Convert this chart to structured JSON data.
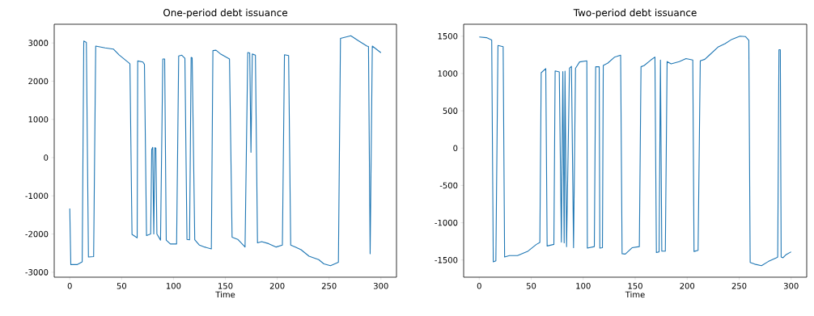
{
  "chart_data": [
    {
      "type": "line",
      "title": "One-period debt issuance",
      "xlabel": "Time",
      "xlim": [
        -15,
        315
      ],
      "ylim": [
        -3130,
        3490
      ],
      "xticks": [
        0,
        50,
        100,
        150,
        200,
        250,
        300
      ],
      "yticks": [
        -3000,
        -2000,
        -1000,
        0,
        1000,
        2000,
        3000
      ],
      "x": [
        0,
        1,
        7,
        12,
        13.5,
        16,
        18,
        23,
        25,
        34,
        42,
        47.5,
        58,
        60,
        65,
        65.5,
        70.5,
        72,
        74,
        78,
        79,
        80,
        81,
        82,
        83,
        84,
        87.5,
        89.7,
        91.5,
        93,
        97,
        103,
        105,
        108,
        111,
        113,
        115.5,
        117,
        118,
        120.5,
        125,
        130,
        136.5,
        138,
        141,
        145,
        154,
        156.5,
        162,
        169,
        171.6,
        173.5,
        174.7,
        176,
        179,
        181,
        185,
        191.6,
        199,
        205,
        207,
        211,
        213,
        217.6,
        223,
        230.7,
        240,
        245,
        251.4,
        259,
        261,
        271,
        278.7,
        286.5,
        288,
        289.6,
        291.7,
        300
      ],
      "series": [
        {
          "color": "#1f77b4",
          "values": [
            -1330,
            -2800,
            -2800,
            -2730,
            3050,
            3015,
            -2600,
            -2590,
            2920,
            2870,
            2840,
            2690,
            2455,
            -2010,
            -2100,
            2530,
            2500,
            2440,
            -2040,
            -2000,
            210,
            270,
            -2000,
            260,
            250,
            -2000,
            -2160,
            2580,
            2580,
            -2160,
            -2260,
            -2260,
            2660,
            2680,
            2600,
            -2140,
            -2150,
            2620,
            2610,
            -2150,
            -2290,
            -2340,
            -2390,
            2800,
            2810,
            2720,
            2580,
            -2085,
            -2140,
            -2340,
            2750,
            2740,
            140,
            2710,
            2680,
            -2230,
            -2200,
            -2250,
            -2340,
            -2290,
            2690,
            2670,
            -2290,
            -2340,
            -2410,
            -2580,
            -2670,
            -2780,
            -2830,
            -2740,
            3120,
            3190,
            3050,
            2920,
            2910,
            -2515,
            2920,
            2745
          ]
        }
      ]
    },
    {
      "type": "line",
      "title": "Two-period debt issuance",
      "xlabel": "Time",
      "xlim": [
        -15,
        315
      ],
      "ylim": [
        -1730,
        1660
      ],
      "xticks": [
        0,
        50,
        100,
        150,
        200,
        250,
        300
      ],
      "yticks": [
        -1500,
        -1000,
        -500,
        0,
        500,
        1000,
        1500
      ],
      "x": [
        0,
        7,
        12,
        13.5,
        16,
        18,
        23,
        24.4,
        29,
        36.8,
        47,
        55,
        58.3,
        59.6,
        64,
        65.3,
        71.8,
        73,
        77,
        79,
        80.4,
        81.7,
        82.5,
        84,
        86.8,
        88.7,
        90.7,
        92.6,
        96.5,
        103.5,
        104,
        110.7,
        112,
        115.4,
        116,
        118.5,
        119.3,
        123.7,
        130,
        136,
        137.4,
        140.5,
        147,
        154,
        155.6,
        158.7,
        165,
        169,
        170.4,
        173,
        174.3,
        175.6,
        179,
        180.7,
        184.6,
        192.4,
        198.9,
        205.4,
        206.6,
        210.5,
        212.6,
        217,
        220.9,
        230,
        236.5,
        243,
        250.8,
        256,
        259.3,
        260.6,
        265,
        271.5,
        278,
        285.8,
        287.1,
        288.3,
        289.6,
        290.4,
        292.2,
        294.9,
        300
      ],
      "series": [
        {
          "color": "#1f77b4",
          "values": [
            1490,
            1480,
            1450,
            -1525,
            -1510,
            1376,
            1360,
            -1460,
            -1440,
            -1440,
            -1380,
            -1290,
            -1265,
            1010,
            1065,
            -1312,
            -1290,
            1035,
            1020,
            -1260,
            1025,
            -1270,
            1030,
            -1320,
            1070,
            1095,
            -1335,
            1070,
            1155,
            1170,
            -1340,
            -1320,
            1090,
            1090,
            -1340,
            -1335,
            1108,
            1140,
            1218,
            1245,
            -1415,
            -1420,
            -1335,
            -1320,
            1090,
            1108,
            1180,
            1220,
            -1400,
            -1390,
            1180,
            -1380,
            -1380,
            1160,
            1130,
            1160,
            1200,
            1180,
            -1385,
            -1370,
            1170,
            1190,
            1240,
            1358,
            1400,
            1458,
            1500,
            1495,
            1445,
            -1533,
            -1555,
            -1575,
            -1520,
            -1470,
            -1460,
            1318,
            1318,
            -1460,
            -1470,
            -1430,
            -1390
          ]
        }
      ]
    }
  ]
}
